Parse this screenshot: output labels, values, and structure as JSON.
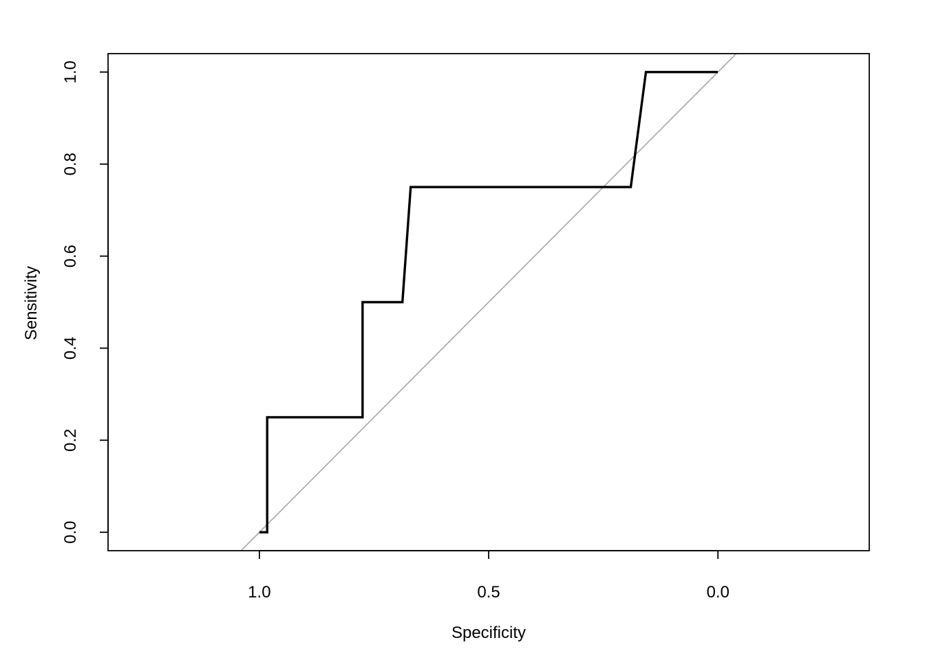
{
  "chart_data": {
    "type": "line",
    "title": "",
    "xlabel": "Specificity",
    "ylabel": "Sensitivity",
    "x_reversed": true,
    "xlim": [
      1.33,
      -0.33
    ],
    "ylim": [
      -0.04,
      1.04
    ],
    "x_ticks": [
      {
        "value": 1.0,
        "label": "1.0"
      },
      {
        "value": 0.5,
        "label": "0.5"
      },
      {
        "value": 0.0,
        "label": "0.0"
      }
    ],
    "y_ticks": [
      {
        "value": 0.0,
        "label": "0.0"
      },
      {
        "value": 0.2,
        "label": "0.2"
      },
      {
        "value": 0.4,
        "label": "0.4"
      },
      {
        "value": 0.6,
        "label": "0.6"
      },
      {
        "value": 0.8,
        "label": "0.8"
      },
      {
        "value": 1.0,
        "label": "1.0"
      }
    ],
    "grid": false,
    "legend": "none",
    "series": [
      {
        "color": "#000000",
        "points": [
          {
            "specificity": 1.0,
            "sensitivity": 0.0
          },
          {
            "specificity": 0.983,
            "sensitivity": 0.0
          },
          {
            "specificity": 0.983,
            "sensitivity": 0.25
          },
          {
            "specificity": 0.775,
            "sensitivity": 0.25
          },
          {
            "specificity": 0.775,
            "sensitivity": 0.5
          },
          {
            "specificity": 0.688,
            "sensitivity": 0.5
          },
          {
            "specificity": 0.67,
            "sensitivity": 0.75
          },
          {
            "specificity": 0.19,
            "sensitivity": 0.75
          },
          {
            "specificity": 0.157,
            "sensitivity": 1.0
          },
          {
            "specificity": 0.0,
            "sensitivity": 1.0
          }
        ]
      }
    ],
    "reference_line": {
      "color": "#a6a6a6",
      "description": "diagonal chance line sensitivity = 1 - specificity"
    }
  }
}
